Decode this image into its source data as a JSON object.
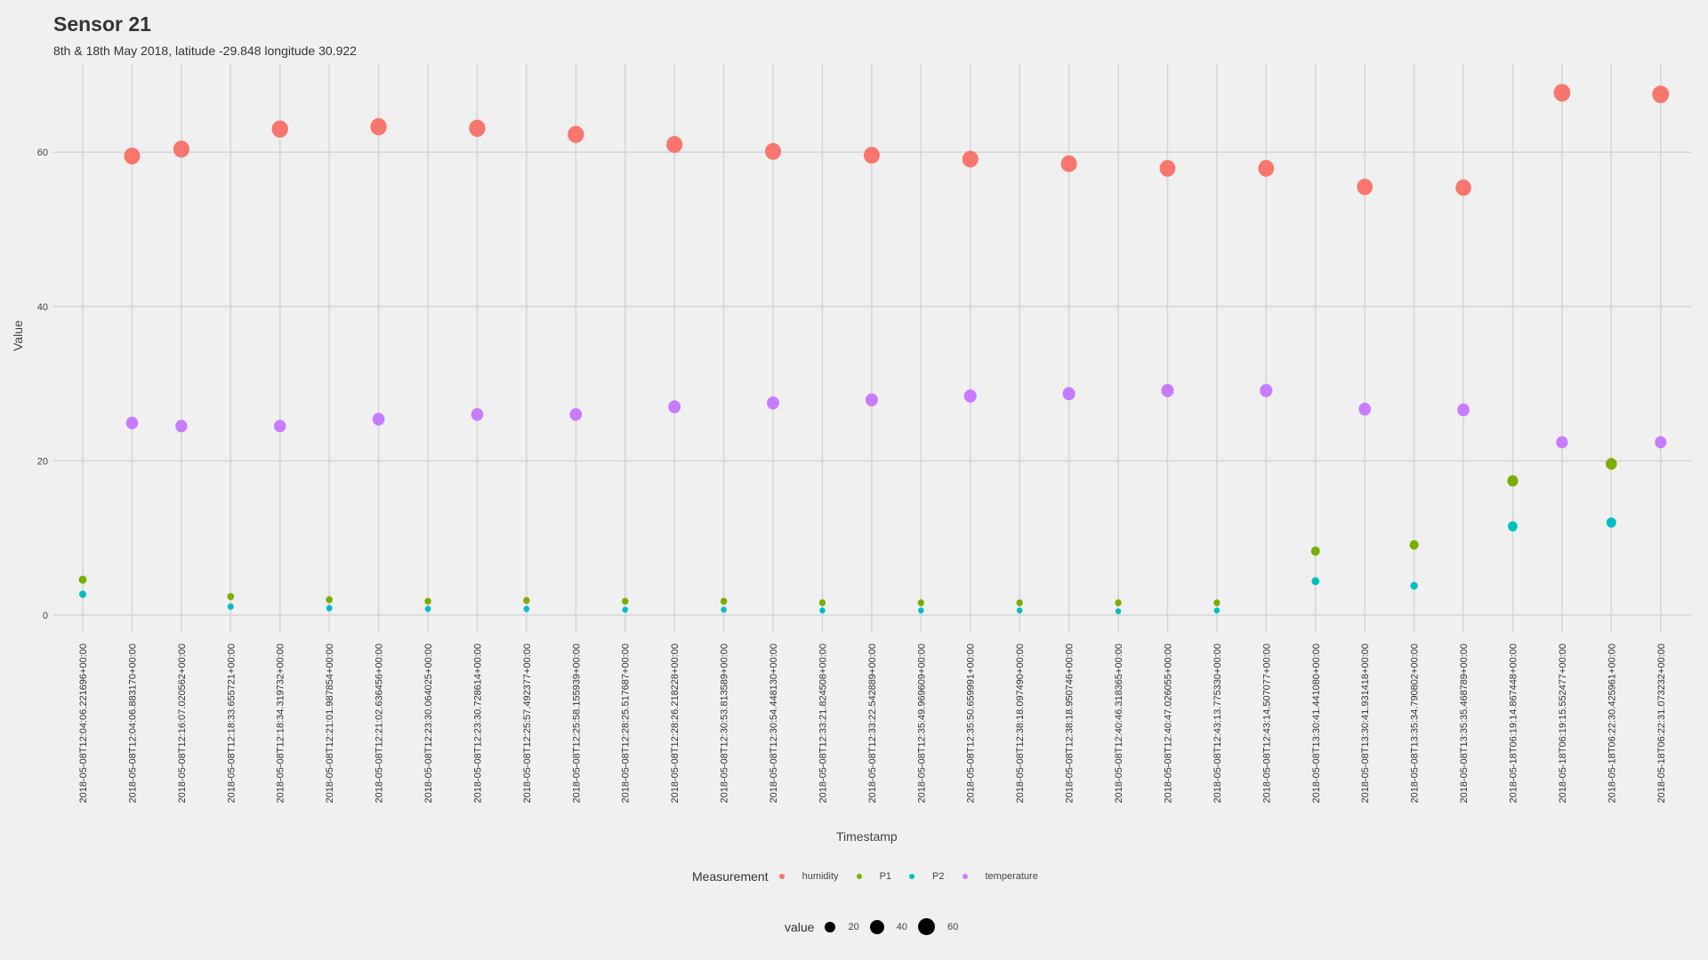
{
  "title": "Sensor 21",
  "subtitle": "8th & 18th May 2018, latitude -29.848 longitude 30.922",
  "colors": {
    "background": "#f0f0f0",
    "grid": "#d6d6d6",
    "humidity": "#f8766d",
    "P1": "#7cae00",
    "P2": "#00bfc4",
    "temperature": "#c77cff"
  },
  "legend": {
    "color_title": "Measurement",
    "color_items": [
      {
        "label": "humidity",
        "color": "#f8766d"
      },
      {
        "label": "P1",
        "color": "#7cae00"
      },
      {
        "label": "P2",
        "color": "#00bfc4"
      },
      {
        "label": "temperature",
        "color": "#c77cff"
      }
    ],
    "size_title": "value",
    "size_items": [
      {
        "label": "20",
        "diameter": 12
      },
      {
        "label": "40",
        "diameter": 16
      },
      {
        "label": "60",
        "diameter": 19
      }
    ]
  },
  "chart_data": {
    "type": "scatter",
    "title": "Sensor 21",
    "subtitle": "8th & 18th May 2018, latitude -29.848 longitude 30.922",
    "xlabel": "Timestamp",
    "ylabel": "Value",
    "ylim": [
      -1,
      70
    ],
    "yticks": [
      0,
      20,
      40,
      60
    ],
    "grid": true,
    "legend_position": "bottom",
    "categories": [
      "2018-05-08T12:04:06.221696+00:00",
      "2018-05-08T12:04:06.883170+00:00",
      "2018-05-08T12:16:07.020562+00:00",
      "2018-05-08T12:18:33.655721+00:00",
      "2018-05-08T12:18:34.319732+00:00",
      "2018-05-08T12:21:01.987854+00:00",
      "2018-05-08T12:21:02.636456+00:00",
      "2018-05-08T12:23:30.064025+00:00",
      "2018-05-08T12:23:30.728614+00:00",
      "2018-05-08T12:25:57.492377+00:00",
      "2018-05-08T12:25:58.155939+00:00",
      "2018-05-08T12:28:25.517687+00:00",
      "2018-05-08T12:28:26.218228+00:00",
      "2018-05-08T12:30:53.813589+00:00",
      "2018-05-08T12:30:54.448130+00:00",
      "2018-05-08T12:33:21.824508+00:00",
      "2018-05-08T12:33:22.542889+00:00",
      "2018-05-08T12:35:49.969609+00:00",
      "2018-05-08T12:35:50.659991+00:00",
      "2018-05-08T12:38:18.097490+00:00",
      "2018-05-08T12:38:18.950746+00:00",
      "2018-05-08T12:40:46.318365+00:00",
      "2018-05-08T12:40:47.026055+00:00",
      "2018-05-08T12:43:13.775330+00:00",
      "2018-05-08T12:43:14.507077+00:00",
      "2018-05-08T13:30:41.441080+00:00",
      "2018-05-08T13:30:41.931418+00:00",
      "2018-05-08T13:35:34.790802+00:00",
      "2018-05-08T13:35:35.468789+00:00",
      "2018-05-18T06:19:14.867448+00:00",
      "2018-05-18T06:19:15.552477+00:00",
      "2018-05-18T06:22:30.425961+00:00",
      "2018-05-18T06:22:31.073232+00:00"
    ],
    "series": [
      {
        "name": "humidity",
        "color": "#f8766d",
        "values": [
          null,
          59.5,
          60.4,
          null,
          63.0,
          null,
          63.3,
          null,
          63.1,
          null,
          62.3,
          null,
          61.0,
          null,
          60.1,
          null,
          59.6,
          null,
          59.1,
          null,
          58.5,
          null,
          57.9,
          null,
          57.9,
          null,
          55.5,
          null,
          55.4,
          null,
          67.7,
          null,
          67.5
        ]
      },
      {
        "name": "P1",
        "color": "#7cae00",
        "values": [
          4.6,
          null,
          null,
          2.4,
          null,
          2.0,
          null,
          1.8,
          null,
          1.9,
          null,
          1.8,
          null,
          1.8,
          null,
          1.6,
          null,
          1.6,
          null,
          1.6,
          null,
          1.6,
          null,
          1.6,
          null,
          8.3,
          null,
          9.1,
          null,
          17.4,
          null,
          19.6,
          null
        ]
      },
      {
        "name": "P2",
        "color": "#00bfc4",
        "values": [
          2.7,
          null,
          null,
          1.1,
          null,
          0.9,
          null,
          0.8,
          null,
          0.8,
          null,
          0.7,
          null,
          0.7,
          null,
          0.6,
          null,
          0.6,
          null,
          0.6,
          null,
          0.5,
          null,
          0.6,
          null,
          4.4,
          null,
          3.8,
          null,
          11.5,
          null,
          12.0,
          null
        ]
      },
      {
        "name": "temperature",
        "color": "#c77cff",
        "values": [
          null,
          24.9,
          24.5,
          null,
          24.5,
          null,
          25.4,
          null,
          26.0,
          null,
          26.0,
          null,
          27.0,
          null,
          27.5,
          null,
          27.9,
          null,
          28.4,
          null,
          28.7,
          null,
          29.1,
          null,
          29.1,
          null,
          26.7,
          null,
          26.6,
          null,
          22.4,
          null,
          22.4
        ]
      }
    ],
    "size_scale": {
      "title": "value",
      "breaks": [
        20,
        40,
        60
      ]
    }
  }
}
